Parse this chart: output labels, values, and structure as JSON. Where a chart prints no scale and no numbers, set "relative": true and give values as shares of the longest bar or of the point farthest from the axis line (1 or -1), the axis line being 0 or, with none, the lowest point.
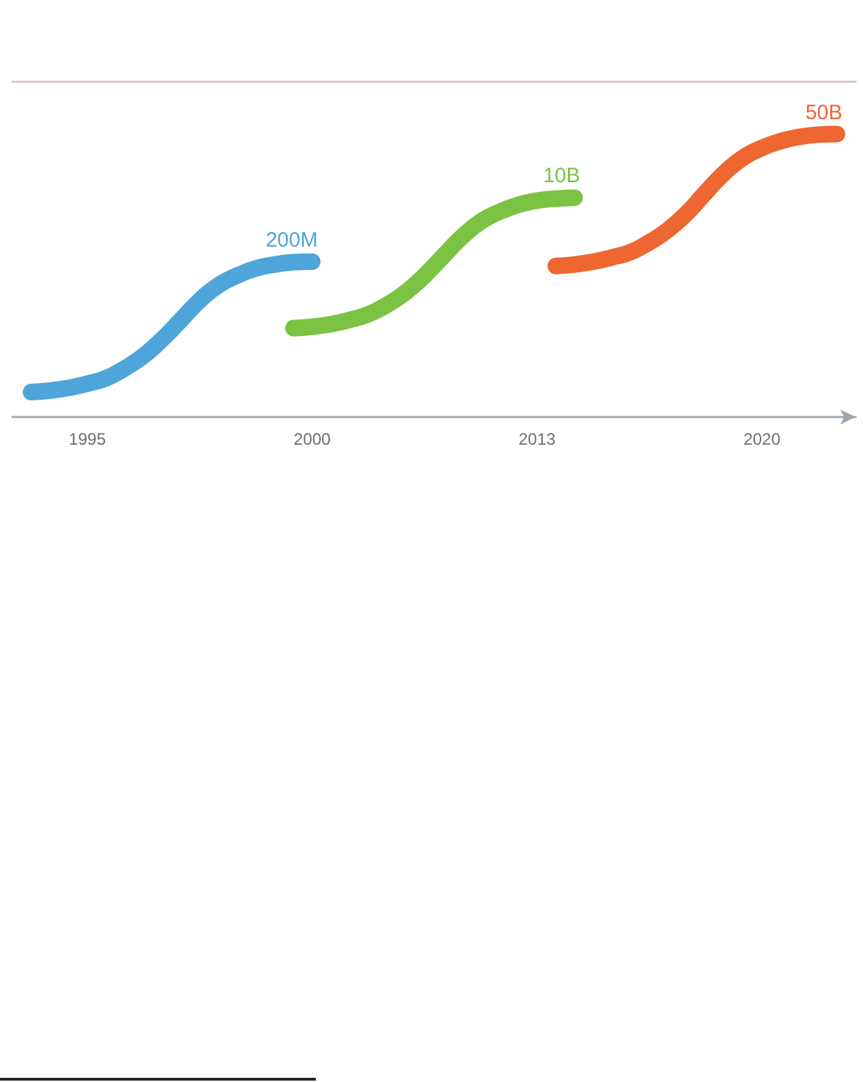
{
  "chart_data": {
    "type": "line",
    "relative": true,
    "marker": "none",
    "line_style": "solid",
    "categories": [
      null,
      null,
      null,
      null,
      "1995",
      null,
      null,
      null,
      null,
      null,
      null,
      null,
      null,
      null,
      null,
      null,
      "2000",
      null,
      null,
      null,
      null,
      null,
      null,
      null,
      null,
      null,
      null,
      null,
      "2013",
      null,
      null,
      null,
      null,
      null,
      null,
      null,
      null,
      null,
      null,
      null,
      "2020",
      null,
      null,
      null,
      null,
      null
    ],
    "series": [
      {
        "name": "200M",
        "color": "#4ea5d9",
        "values": [
          null,
          0.088,
          0.093,
          0.103,
          0.118,
          0.137,
          0.172,
          0.216,
          0.275,
          0.343,
          0.412,
          0.466,
          0.5,
          0.525,
          0.539,
          0.547,
          0.549,
          null,
          null,
          null,
          null,
          null,
          null,
          null,
          null,
          null,
          null,
          null,
          null,
          null,
          null,
          null,
          null,
          null,
          null,
          null,
          null,
          null,
          null,
          null,
          null,
          null,
          null,
          null,
          null,
          null
        ]
      },
      {
        "name": "10B",
        "color": "#7cc243",
        "values": [
          null,
          null,
          null,
          null,
          null,
          null,
          null,
          null,
          null,
          null,
          null,
          null,
          null,
          null,
          null,
          0.314,
          0.319,
          0.328,
          0.343,
          0.363,
          0.397,
          0.441,
          0.5,
          0.569,
          0.637,
          0.691,
          0.725,
          0.75,
          0.765,
          0.772,
          0.775,
          null,
          null,
          null,
          null,
          null,
          null,
          null,
          null,
          null,
          null,
          null,
          null,
          null,
          null,
          null
        ]
      },
      {
        "name": "50B",
        "color": "#ee6630",
        "values": [
          null,
          null,
          null,
          null,
          null,
          null,
          null,
          null,
          null,
          null,
          null,
          null,
          null,
          null,
          null,
          null,
          null,
          null,
          null,
          null,
          null,
          null,
          null,
          null,
          null,
          null,
          null,
          null,
          null,
          0.534,
          0.539,
          0.549,
          0.564,
          0.583,
          0.618,
          0.662,
          0.721,
          0.794,
          0.863,
          0.917,
          0.951,
          0.975,
          0.99,
          0.998,
          1,
          null
        ]
      }
    ]
  }
}
